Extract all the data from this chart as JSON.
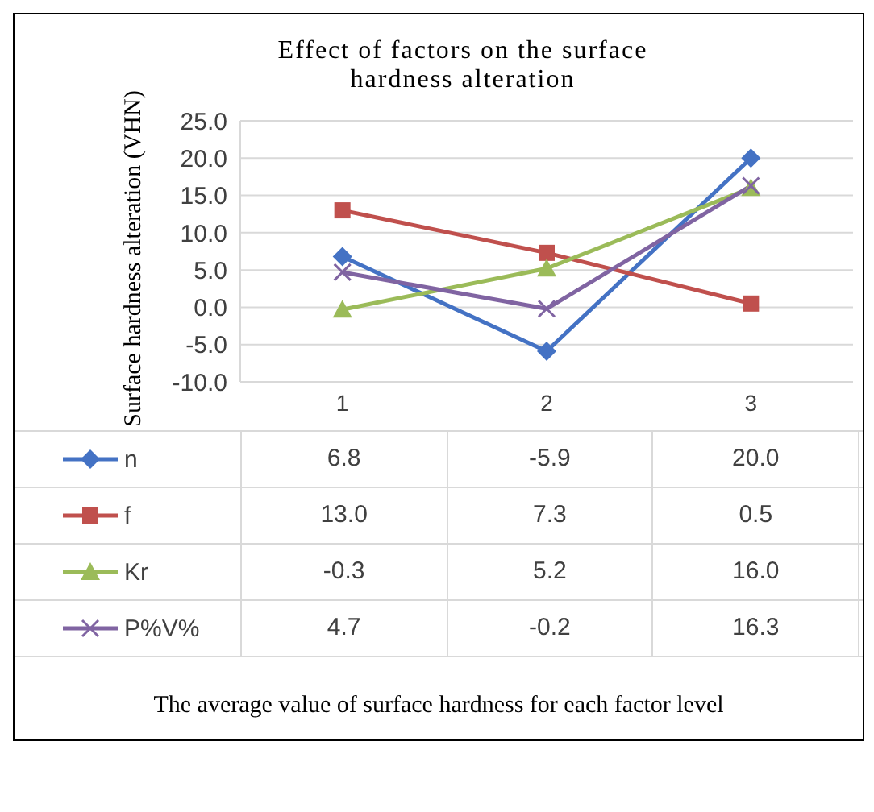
{
  "chart_data": {
    "type": "line",
    "title": "Effect of factors on the surface hardness alteration",
    "annotations": [
      "The average value of surface hardness for each factor level"
    ],
    "ylabel": "Surface hardness alteration (VHN)",
    "categories": [
      "1",
      "2",
      "3"
    ],
    "series": [
      {
        "name": "n",
        "color": "#4472c4",
        "marker": "diamond",
        "values": [
          6.8,
          -5.9,
          20.0
        ],
        "value_labels": [
          "6.8",
          "-5.9",
          "20.0"
        ]
      },
      {
        "name": "f",
        "color": "#c0504d",
        "marker": "square",
        "values": [
          13.0,
          7.3,
          0.5
        ],
        "value_labels": [
          "13.0",
          "7.3",
          "0.5"
        ]
      },
      {
        "name": "Kr",
        "color": "#9bbb59",
        "marker": "triangle",
        "values": [
          -0.3,
          5.2,
          16.0
        ],
        "value_labels": [
          "-0.3",
          "5.2",
          "16.0"
        ]
      },
      {
        "name": "P%V%",
        "color": "#8064a2",
        "marker": "cross",
        "values": [
          4.7,
          -0.2,
          16.3
        ],
        "value_labels": [
          "4.7",
          "-0.2",
          "16.3"
        ]
      }
    ],
    "ylim": [
      -10,
      25
    ],
    "yticks": [
      {
        "value": -10,
        "label": "-10.0"
      },
      {
        "value": -5,
        "label": "-5.0"
      },
      {
        "value": 0,
        "label": "0.0"
      },
      {
        "value": 5,
        "label": "5.0"
      },
      {
        "value": 10,
        "label": "10.0"
      },
      {
        "value": 15,
        "label": "15.0"
      },
      {
        "value": 20,
        "label": "20.0"
      },
      {
        "value": 25,
        "label": "25.0"
      }
    ],
    "grid": "y",
    "legend": "bottom",
    "line_style": "solid"
  }
}
